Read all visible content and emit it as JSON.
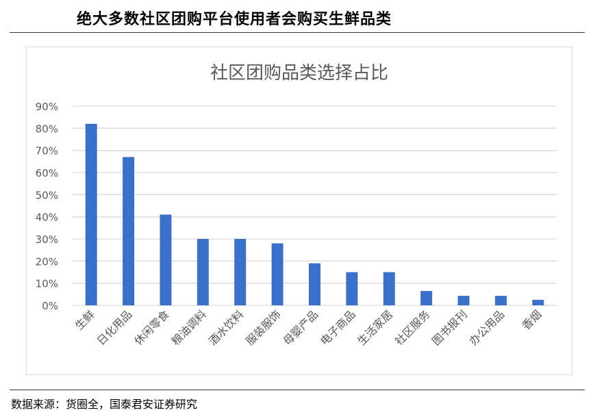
{
  "header": {
    "title": "绝大多数社区团购平台使用者会购买生鲜品类"
  },
  "footer": {
    "source": "数据来源：货圈全，国泰君安证券研究"
  },
  "colors": {
    "bar": "#3a70c8",
    "grid": "#d9d9d9",
    "axis_text": "#595959"
  },
  "chart_data": {
    "type": "bar",
    "title": "社区团购品类选择占比",
    "categories": [
      "生鲜",
      "日化用品",
      "休闲零食",
      "粮油调料",
      "酒水饮料",
      "服装服饰",
      "母婴产品",
      "电子商品",
      "生活家居",
      "社区服务",
      "图书报刊",
      "办公用品",
      "香烟"
    ],
    "values": [
      82,
      67,
      41,
      30,
      30,
      28,
      19,
      15,
      15,
      6.5,
      4.3,
      4.3,
      2.5
    ],
    "unit": "%",
    "ylim": [
      0,
      90
    ],
    "yticks": [
      "0%",
      "10%",
      "20%",
      "30%",
      "40%",
      "50%",
      "60%",
      "70%",
      "80%",
      "90%"
    ],
    "grid": true,
    "legend": "none"
  }
}
